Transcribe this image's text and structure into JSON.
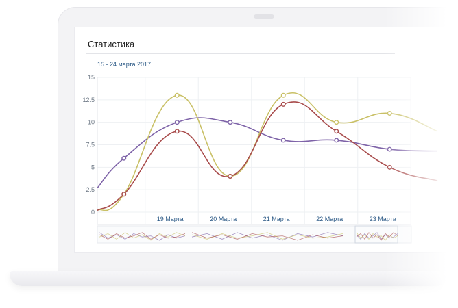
{
  "panel": {
    "title": "Статистика",
    "date_range": "15 - 24 марта 2017"
  },
  "chart_data": {
    "type": "line",
    "title": "",
    "xlabel": "",
    "ylabel": "",
    "ylim": [
      0,
      15
    ],
    "y_ticks": [
      "0",
      "2.5",
      "5",
      "7.5",
      "10",
      "12.5",
      "15"
    ],
    "x_ticks": [
      "19 Марта",
      "20 Марта",
      "21 Марта",
      "22 Марта",
      "23 Марта"
    ],
    "grid": true,
    "series": [
      {
        "color": "#7e63a8",
        "x": [
          0,
          0.5,
          1.5,
          2.5,
          3.5,
          4.5,
          5.5,
          6.4
        ],
        "y": [
          2.7,
          6,
          10,
          10,
          8,
          8,
          7,
          6.8
        ]
      },
      {
        "color": "#c9c066",
        "x": [
          0,
          0.5,
          1.5,
          2.5,
          3.5,
          4.5,
          5.5,
          6.4
        ],
        "y": [
          0.2,
          2,
          13,
          4,
          13,
          10,
          11,
          9
        ]
      },
      {
        "color": "#a84b4b",
        "x": [
          0,
          0.5,
          1.5,
          2.5,
          3.5,
          4.5,
          5.5,
          6.4
        ],
        "y": [
          0.2,
          2,
          9,
          4,
          12,
          9,
          5,
          3.5
        ]
      }
    ]
  },
  "preview_colors": {
    "purple": "#7e63a8",
    "yellow": "#c9c066",
    "red": "#a84b4b"
  }
}
